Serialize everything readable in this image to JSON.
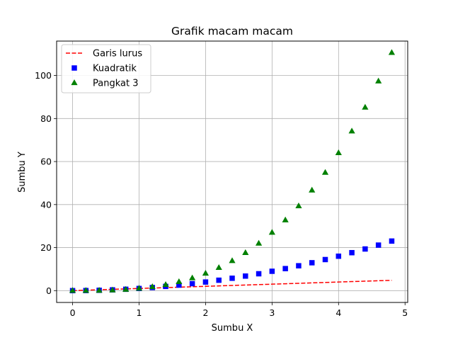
{
  "chart_data": {
    "type": "scatter",
    "title": "Grafik macam macam",
    "xlabel": "Sumbu X",
    "ylabel": "Sumbu Y",
    "xlim": [
      -0.24,
      5.04
    ],
    "ylim": [
      -5.5,
      116.0
    ],
    "x_ticks": [
      0,
      1,
      2,
      3,
      4,
      5
    ],
    "y_ticks": [
      0,
      20,
      40,
      60,
      80,
      100
    ],
    "grid": true,
    "legend_position": "top-left",
    "x": [
      0.0,
      0.2,
      0.4,
      0.6,
      0.8,
      1.0,
      1.2,
      1.4,
      1.6,
      1.8,
      2.0,
      2.2,
      2.4,
      2.6,
      2.8,
      3.0,
      3.2,
      3.4,
      3.6,
      3.8,
      4.0,
      4.2,
      4.4,
      4.6,
      4.8
    ],
    "series": [
      {
        "name": "Garis lurus",
        "style": "dashed-line",
        "color": "#ff0000",
        "values": [
          0.0,
          0.2,
          0.4,
          0.6,
          0.8,
          1.0,
          1.2,
          1.4,
          1.6,
          1.8,
          2.0,
          2.2,
          2.4,
          2.6,
          2.8,
          3.0,
          3.2,
          3.4,
          3.6,
          3.8,
          4.0,
          4.2,
          4.4,
          4.6,
          4.8
        ]
      },
      {
        "name": "Kuadratik",
        "style": "square-marker",
        "color": "#0000ff",
        "values": [
          0.0,
          0.04,
          0.16,
          0.36,
          0.64,
          1.0,
          1.44,
          1.96,
          2.56,
          3.24,
          4.0,
          4.84,
          5.76,
          6.76,
          7.84,
          9.0,
          10.24,
          11.56,
          12.96,
          14.44,
          16.0,
          17.64,
          19.36,
          21.16,
          23.04
        ]
      },
      {
        "name": "Pangkat 3",
        "style": "triangle-marker",
        "color": "#008000",
        "values": [
          0.0,
          0.008,
          0.064,
          0.216,
          0.512,
          1.0,
          1.728,
          2.744,
          4.096,
          5.832,
          8.0,
          10.648,
          13.824,
          17.576,
          21.952,
          27.0,
          32.768,
          39.304,
          46.656,
          54.872,
          64.0,
          74.088,
          85.184,
          97.336,
          110.592
        ]
      }
    ]
  }
}
